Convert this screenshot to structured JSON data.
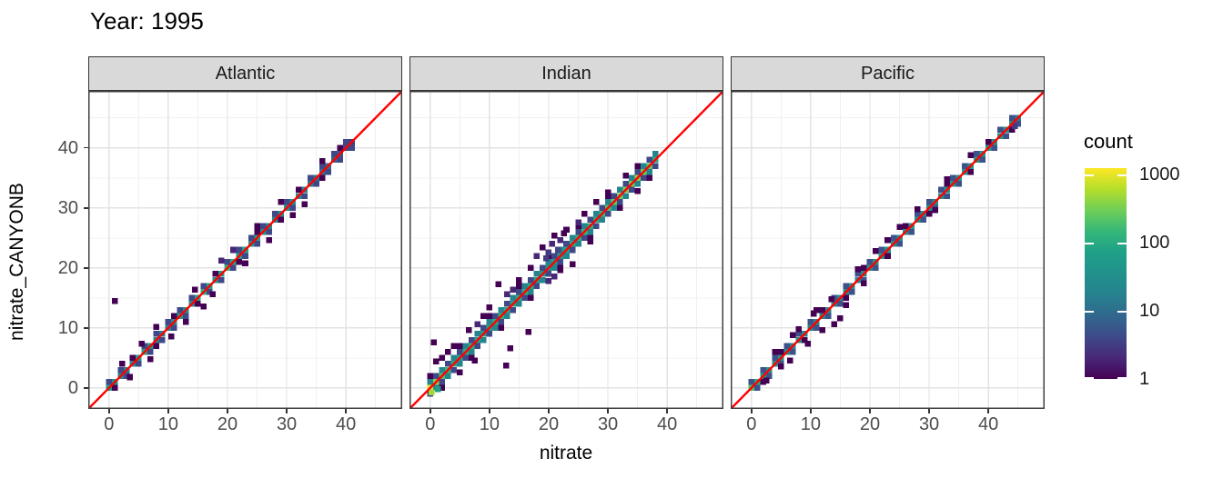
{
  "title": "Year: 1995",
  "colors": {
    "red_line": "#ff0000",
    "strip_bg": "#d9d9d9",
    "strip_border": "#333333",
    "panel_border": "#404040",
    "grid_major": "#e3e3e3",
    "grid_minor": "#f0f0f0",
    "tick_text": "#4d4d4d"
  },
  "chart_data": {
    "type": "heatmap",
    "subtype": "geom_bin2d faceted scatter of predicted vs observed with y=x reference line",
    "title": "Year: 1995",
    "xlabel": "nitrate",
    "ylabel": "nitrate_CANYONB",
    "x_domain": [
      -3.5,
      49.5
    ],
    "y_domain": [
      -3.5,
      49.5
    ],
    "x_ticks": [
      0,
      10,
      20,
      30,
      40
    ],
    "y_ticks": [
      0,
      10,
      20,
      30,
      40
    ],
    "minor_ticks": [
      5,
      15,
      25,
      35,
      45
    ],
    "bin_size": 1,
    "identity_line": {
      "slope": 1,
      "intercept": 0,
      "color": "#ff0000"
    },
    "legend": {
      "title": "count",
      "scale": "log10",
      "ticks": [
        1000,
        100,
        10,
        1
      ],
      "max": 1250,
      "position": "right",
      "viridis_stops": [
        "#440154",
        "#482878",
        "#3e4a89",
        "#31688e",
        "#26828e",
        "#21918c",
        "#1fa088",
        "#35b779",
        "#6ece58",
        "#b5de2b",
        "#fde725"
      ]
    },
    "panels": [
      {
        "name": "Atlantic",
        "diag": {
          "x0": 0,
          "counts": [
            60,
            35,
            20,
            15,
            25,
            60,
            80,
            40,
            20,
            15,
            20,
            30,
            60,
            35,
            25,
            90,
            120,
            80,
            40,
            60,
            150,
            100,
            60,
            80,
            45,
            60,
            35,
            25,
            25,
            30,
            40,
            35,
            25,
            20,
            15,
            12,
            10,
            10,
            8,
            6,
            4,
            3
          ]
        },
        "bands": [
          {
            "offsets": [
              1,
              -1
            ],
            "count": 4
          },
          {
            "offsets": [
              null,
              -1,
              null,
              null,
              1,
              null,
              null
            ],
            "count": 1
          }
        ],
        "bins": [
          [
            1,
            14.5,
            1
          ],
          [
            3.5,
            1.8,
            1
          ],
          [
            8,
            10.2,
            1
          ],
          [
            13,
            11,
            1
          ],
          [
            14.5,
            16.4,
            1
          ],
          [
            16,
            13.6,
            1
          ],
          [
            17.5,
            15.6,
            1
          ],
          [
            21,
            23,
            2
          ],
          [
            23,
            20.8,
            1
          ],
          [
            27,
            24.6,
            1
          ],
          [
            29,
            31,
            1
          ],
          [
            33,
            30.6,
            1
          ],
          [
            36,
            37.8,
            1
          ],
          [
            2.2,
            4,
            1
          ],
          [
            5.5,
            7.4,
            1
          ],
          [
            7,
            4.8,
            1
          ],
          [
            10.5,
            8.6,
            1
          ],
          [
            19,
            21.2,
            2
          ],
          [
            25,
            27,
            1
          ],
          [
            31,
            28.8,
            1
          ]
        ]
      },
      {
        "name": "Indian",
        "diag": {
          "x0": 0,
          "counts": [
            1000,
            400,
            200,
            150,
            100,
            80,
            100,
            120,
            80,
            60,
            80,
            100,
            120,
            100,
            80,
            100,
            120,
            100,
            80,
            60,
            40,
            50,
            60,
            80,
            100,
            120,
            150,
            120,
            100,
            150,
            200,
            250,
            300,
            350,
            300,
            400,
            300,
            250,
            100
          ]
        },
        "bands": [
          {
            "offsets": [
              1,
              -1
            ],
            "count": 20
          },
          {
            "offsets": [
              -1,
              1
            ],
            "count": 4
          },
          {
            "offsets": [
              2,
              null,
              -2,
              null,
              null
            ],
            "count": 1
          }
        ],
        "bins": [
          [
            11.5,
            17.3,
            1
          ],
          [
            13.5,
            6.6,
            1
          ],
          [
            16.6,
            9.3,
            1
          ],
          [
            12.8,
            3.7,
            1
          ],
          [
            9,
            12,
            1
          ],
          [
            6.5,
            9.6,
            1
          ],
          [
            3,
            6,
            1
          ],
          [
            1,
            4.4,
            1
          ],
          [
            0.6,
            7.6,
            1
          ],
          [
            14,
            16.4,
            2
          ],
          [
            26,
            29,
            1
          ],
          [
            28,
            31,
            1
          ],
          [
            24,
            20.6,
            1
          ],
          [
            17,
            20,
            1
          ],
          [
            5,
            2.6,
            1
          ],
          [
            7.5,
            4.6,
            1
          ],
          [
            20,
            22.6,
            3
          ],
          [
            20.6,
            24,
            2
          ],
          [
            21,
            25.4,
            1
          ],
          [
            21.6,
            23,
            4
          ],
          [
            22,
            24.6,
            2
          ],
          [
            19.6,
            21.6,
            3
          ],
          [
            22.6,
            25.8,
            1
          ],
          [
            23,
            26.4,
            1
          ],
          [
            20,
            17.8,
            2
          ],
          [
            21,
            18.6,
            2
          ],
          [
            22,
            19.6,
            1
          ],
          [
            18,
            22,
            2
          ],
          [
            19,
            23.4,
            1
          ],
          [
            2,
            5,
            1
          ],
          [
            4,
            7,
            1
          ],
          [
            10,
            13.4,
            1
          ],
          [
            15,
            18,
            1
          ],
          [
            25,
            27.6,
            2
          ],
          [
            27,
            24.4,
            1
          ],
          [
            30,
            32.6,
            1
          ],
          [
            33,
            35.4,
            1
          ],
          [
            35,
            32.8,
            1
          ],
          [
            8,
            10.6,
            2
          ],
          [
            13,
            15.6,
            2
          ],
          [
            0.2,
            -0.7,
            500
          ],
          [
            1.3,
            -0.2,
            60
          ]
        ]
      },
      {
        "name": "Pacific",
        "diag": {
          "x0": 0,
          "counts": [
            200,
            100,
            60,
            40,
            30,
            40,
            30,
            25,
            30,
            25,
            20,
            25,
            30,
            25,
            20,
            25,
            30,
            35,
            30,
            25,
            30,
            40,
            50,
            40,
            35,
            30,
            35,
            40,
            35,
            30,
            25,
            30,
            35,
            40,
            45,
            50,
            45,
            40,
            45,
            50,
            55,
            50,
            45,
            40,
            30,
            15
          ]
        },
        "bands": [
          {
            "offsets": [
              1,
              -1
            ],
            "count": 5
          },
          {
            "offsets": [
              null,
              null,
              -1,
              null,
              null,
              1,
              null
            ],
            "count": 1
          }
        ],
        "bins": [
          [
            4,
            6,
            1
          ],
          [
            6.5,
            4.6,
            1
          ],
          [
            8,
            9.8,
            1
          ],
          [
            9.5,
            7.4,
            1
          ],
          [
            10.5,
            12.4,
            1
          ],
          [
            12,
            9.6,
            1
          ],
          [
            13.5,
            14.8,
            1
          ],
          [
            15,
            11.6,
            1
          ],
          [
            14,
            10.6,
            1
          ],
          [
            11,
            13,
            1
          ],
          [
            16,
            13.8,
            1
          ],
          [
            18,
            19.8,
            1
          ],
          [
            21,
            22.8,
            1
          ],
          [
            25,
            26.8,
            1
          ],
          [
            28,
            29.8,
            1
          ],
          [
            31,
            29.6,
            1
          ],
          [
            33,
            34.8,
            1
          ],
          [
            37,
            38.8,
            1
          ],
          [
            2.5,
            1.2,
            1
          ],
          [
            5,
            3.6,
            1
          ],
          [
            44.5,
            43.6,
            3
          ],
          [
            7,
            8.8,
            1
          ],
          [
            19,
            17.4,
            1
          ],
          [
            23,
            24.6,
            1
          ]
        ]
      }
    ]
  }
}
